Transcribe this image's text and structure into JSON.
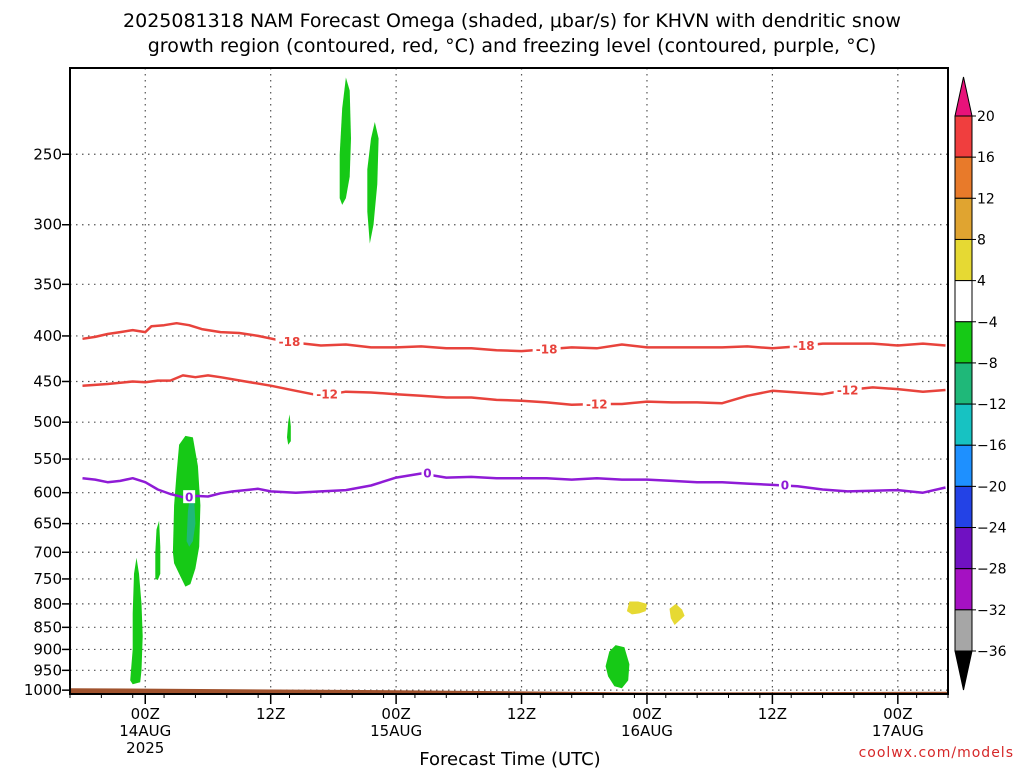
{
  "chart_data": {
    "type": "contour",
    "title_lines": [
      "2025081318 NAM Forecast Omega (shaded, μbar/s) for KHVN with dendritic snow",
      "growth region (contoured, red, °C) and freezing level (contoured, purple, °C)"
    ],
    "xlabel": "Forecast Time (UTC)",
    "credit": "coolwx.com/models",
    "x_range_hours": [
      -6,
      64
    ],
    "x_ticks": [
      {
        "hour": 0,
        "lines": [
          "00Z",
          "14AUG",
          "2025"
        ]
      },
      {
        "hour": 10,
        "lines": [
          "12Z"
        ]
      },
      {
        "hour": 20,
        "lines": [
          "00Z",
          "15AUG"
        ]
      },
      {
        "hour": 30,
        "lines": [
          "12Z"
        ]
      },
      {
        "hour": 40,
        "lines": [
          "00Z",
          "16AUG"
        ]
      },
      {
        "hour": 50,
        "lines": [
          "12Z"
        ]
      },
      {
        "hour": 60,
        "lines": [
          "00Z",
          "17AUG"
        ]
      }
    ],
    "y_ticks": [
      250,
      300,
      350,
      400,
      450,
      500,
      550,
      600,
      650,
      700,
      750,
      800,
      850,
      900,
      950,
      1000
    ],
    "y_range_hpa": [
      200,
      1010
    ],
    "y_scale": "log",
    "grid": true,
    "colorbar": {
      "labels": [
        "20",
        "16",
        "12",
        "8",
        "4",
        "−4",
        "−8",
        "−12",
        "−16",
        "−20",
        "−24",
        "−28",
        "−32",
        "−36"
      ],
      "colors": [
        "#f03e3e",
        "#e87a2a",
        "#e0a430",
        "#e6d933",
        "#ffffff",
        "#16c916",
        "#1fb879",
        "#17c2c2",
        "#1e90ff",
        "#2342e6",
        "#7011c2",
        "#a511c2",
        "#a6a6a6"
      ],
      "top_color": "#e8127a",
      "bottom_color": "#000000"
    },
    "isotherm_minus18": [
      [
        -5.0,
        403
      ],
      [
        -4.0,
        401
      ],
      [
        -3.0,
        398
      ],
      [
        -2.0,
        396
      ],
      [
        -1.0,
        394
      ],
      [
        0.0,
        396
      ],
      [
        0.5,
        390
      ],
      [
        1.5,
        389
      ],
      [
        2.5,
        387
      ],
      [
        3.5,
        389
      ],
      [
        4.5,
        393
      ],
      [
        6.0,
        396
      ],
      [
        7.5,
        397
      ],
      [
        9.0,
        400
      ],
      [
        10.5,
        404
      ],
      [
        12.0,
        407
      ],
      [
        14.0,
        410
      ],
      [
        16.0,
        409
      ],
      [
        18.0,
        412
      ],
      [
        20.0,
        412
      ],
      [
        22.0,
        411
      ],
      [
        24.0,
        413
      ],
      [
        26.0,
        413
      ],
      [
        28.0,
        415
      ],
      [
        30.0,
        416
      ],
      [
        32.0,
        414
      ],
      [
        34.0,
        412
      ],
      [
        36.0,
        413
      ],
      [
        38.0,
        409
      ],
      [
        40.0,
        412
      ],
      [
        42.0,
        412
      ],
      [
        44.0,
        412
      ],
      [
        46.0,
        412
      ],
      [
        48.0,
        411
      ],
      [
        50.0,
        413
      ],
      [
        52.0,
        411
      ],
      [
        54.0,
        408
      ],
      [
        56.0,
        408
      ],
      [
        58.0,
        408
      ],
      [
        60.0,
        410
      ],
      [
        62.0,
        408
      ],
      [
        63.8,
        410
      ]
    ],
    "isotherm_minus12": [
      [
        -5.0,
        455
      ],
      [
        -3.0,
        453
      ],
      [
        -1.0,
        450
      ],
      [
        0.0,
        451
      ],
      [
        1.0,
        449
      ],
      [
        2.0,
        449
      ],
      [
        3.0,
        443
      ],
      [
        4.0,
        445
      ],
      [
        5.0,
        443
      ],
      [
        6.0,
        445
      ],
      [
        8.0,
        450
      ],
      [
        10.0,
        455
      ],
      [
        12.0,
        461
      ],
      [
        14.0,
        467
      ],
      [
        16.0,
        462
      ],
      [
        18.0,
        463
      ],
      [
        20.0,
        465
      ],
      [
        22.0,
        467
      ],
      [
        24.0,
        469
      ],
      [
        26.0,
        469
      ],
      [
        28.0,
        472
      ],
      [
        30.0,
        473
      ],
      [
        32.0,
        475
      ],
      [
        34.0,
        478
      ],
      [
        36.0,
        477
      ],
      [
        38.0,
        477
      ],
      [
        40.0,
        474
      ],
      [
        42.0,
        475
      ],
      [
        44.0,
        475
      ],
      [
        46.0,
        476
      ],
      [
        48.0,
        467
      ],
      [
        50.0,
        461
      ],
      [
        52.0,
        463
      ],
      [
        54.0,
        465
      ],
      [
        56.0,
        460
      ],
      [
        58.0,
        457
      ],
      [
        60.0,
        459
      ],
      [
        62.0,
        462
      ],
      [
        63.8,
        460
      ]
    ],
    "isotherm_0": [
      [
        -5.0,
        578
      ],
      [
        -4.0,
        580
      ],
      [
        -3.0,
        584
      ],
      [
        -2.0,
        582
      ],
      [
        -1.0,
        578
      ],
      [
        0.0,
        584
      ],
      [
        1.0,
        595
      ],
      [
        2.0,
        602
      ],
      [
        3.0,
        607
      ],
      [
        4.0,
        605
      ],
      [
        5.0,
        606
      ],
      [
        6.0,
        601
      ],
      [
        7.0,
        598
      ],
      [
        8.0,
        596
      ],
      [
        9.0,
        594
      ],
      [
        10.0,
        598
      ],
      [
        12.0,
        600
      ],
      [
        14.0,
        598
      ],
      [
        16.0,
        596
      ],
      [
        18.0,
        589
      ],
      [
        20.0,
        577
      ],
      [
        22.0,
        571
      ],
      [
        24.0,
        577
      ],
      [
        26.0,
        576
      ],
      [
        28.0,
        578
      ],
      [
        30.0,
        578
      ],
      [
        32.0,
        578
      ],
      [
        34.0,
        580
      ],
      [
        36.0,
        578
      ],
      [
        38.0,
        580
      ],
      [
        40.0,
        580
      ],
      [
        42.0,
        582
      ],
      [
        44.0,
        584
      ],
      [
        46.0,
        584
      ],
      [
        48.0,
        586
      ],
      [
        50.0,
        588
      ],
      [
        52.0,
        590
      ],
      [
        54.0,
        595
      ],
      [
        56.0,
        598
      ],
      [
        58.0,
        597
      ],
      [
        60.0,
        596
      ],
      [
        62.0,
        600
      ],
      [
        63.8,
        592
      ]
    ],
    "contour_labels": [
      {
        "text": "-18",
        "hour": 11.5,
        "p": 406,
        "color": "#e8433c"
      },
      {
        "text": "-18",
        "hour": 32.0,
        "p": 414,
        "color": "#e8433c"
      },
      {
        "text": "-18",
        "hour": 52.5,
        "p": 410,
        "color": "#e8433c"
      },
      {
        "text": "-12",
        "hour": 14.5,
        "p": 465,
        "color": "#e8433c"
      },
      {
        "text": "-12",
        "hour": 36.0,
        "p": 477,
        "color": "#e8433c"
      },
      {
        "text": "-12",
        "hour": 56.0,
        "p": 460,
        "color": "#e8433c"
      },
      {
        "text": "0",
        "hour": 3.5,
        "p": 607,
        "color": "#8f1bd6"
      },
      {
        "text": "0",
        "hour": 22.5,
        "p": 570,
        "color": "#8f1bd6"
      },
      {
        "text": "0",
        "hour": 51.0,
        "p": 588,
        "color": "#8f1bd6"
      }
    ],
    "omega_regions": [
      {
        "level": "-4 to -8",
        "color": "#16c916",
        "outline": [
          [
            -1.2,
            975
          ],
          [
            -1.0,
            900
          ],
          [
            -1.0,
            820
          ],
          [
            -0.9,
            740
          ],
          [
            -0.7,
            710
          ],
          [
            -0.5,
            740
          ],
          [
            -0.3,
            800
          ],
          [
            -0.2,
            870
          ],
          [
            -0.3,
            950
          ],
          [
            -0.4,
            980
          ],
          [
            -1.0,
            985
          ]
        ]
      },
      {
        "level": "-4 to -8",
        "color": "#16c916",
        "outline": [
          [
            0.8,
            750
          ],
          [
            0.8,
            700
          ],
          [
            0.9,
            660
          ],
          [
            1.1,
            645
          ],
          [
            1.2,
            690
          ],
          [
            1.2,
            740
          ],
          [
            1.0,
            752
          ]
        ]
      },
      {
        "level": "-4 to -8",
        "color": "#16c916",
        "outline": [
          [
            2.2,
            700
          ],
          [
            2.3,
            620
          ],
          [
            2.5,
            570
          ],
          [
            2.7,
            530
          ],
          [
            3.2,
            518
          ],
          [
            3.8,
            520
          ],
          [
            4.2,
            560
          ],
          [
            4.4,
            620
          ],
          [
            4.3,
            690
          ],
          [
            4.0,
            730
          ],
          [
            3.6,
            760
          ],
          [
            3.2,
            765
          ],
          [
            2.7,
            740
          ],
          [
            2.3,
            720
          ]
        ]
      },
      {
        "level": "-8 to -12",
        "color": "#1fb879",
        "outline": [
          [
            3.3,
            680
          ],
          [
            3.4,
            630
          ],
          [
            3.6,
            600
          ],
          [
            3.9,
            610
          ],
          [
            4.0,
            650
          ],
          [
            3.8,
            680
          ],
          [
            3.5,
            690
          ]
        ]
      },
      {
        "level": "-4 to -8",
        "color": "#16c916",
        "outline": [
          [
            11.3,
            520
          ],
          [
            11.4,
            500
          ],
          [
            11.5,
            490
          ],
          [
            11.6,
            505
          ],
          [
            11.6,
            525
          ],
          [
            11.4,
            530
          ]
        ]
      },
      {
        "level": "-4 to -8",
        "color": "#16c916",
        "outline": [
          [
            15.5,
            280
          ],
          [
            15.5,
            250
          ],
          [
            15.7,
            222
          ],
          [
            16.0,
            205
          ],
          [
            16.3,
            212
          ],
          [
            16.4,
            240
          ],
          [
            16.3,
            265
          ],
          [
            16.0,
            280
          ],
          [
            15.7,
            285
          ]
        ]
      },
      {
        "level": "-4 to -8",
        "color": "#16c916",
        "outline": [
          [
            17.7,
            290
          ],
          [
            17.7,
            260
          ],
          [
            18.0,
            240
          ],
          [
            18.3,
            230
          ],
          [
            18.6,
            240
          ],
          [
            18.5,
            270
          ],
          [
            18.2,
            300
          ],
          [
            17.9,
            315
          ]
        ]
      },
      {
        "level": "-4 to -8",
        "color": "#16c916",
        "outline": [
          [
            36.7,
            940
          ],
          [
            37.0,
            905
          ],
          [
            37.5,
            890
          ],
          [
            38.2,
            895
          ],
          [
            38.6,
            935
          ],
          [
            38.5,
            975
          ],
          [
            38.0,
            995
          ],
          [
            37.4,
            990
          ],
          [
            36.9,
            965
          ]
        ]
      },
      {
        "level": "4 to 8",
        "color": "#e6d933",
        "outline": [
          [
            38.4,
            815
          ],
          [
            38.6,
            795
          ],
          [
            39.3,
            795
          ],
          [
            40.0,
            800
          ],
          [
            39.9,
            815
          ],
          [
            39.4,
            820
          ],
          [
            38.8,
            822
          ]
        ]
      },
      {
        "level": "4 to 8",
        "color": "#e6d933",
        "outline": [
          [
            41.8,
            810
          ],
          [
            42.3,
            800
          ],
          [
            42.8,
            812
          ],
          [
            43.0,
            825
          ],
          [
            42.6,
            835
          ],
          [
            42.2,
            845
          ],
          [
            41.9,
            830
          ]
        ]
      }
    ],
    "ground_color": "#a0522d",
    "ground_top_hpa": [
      [
        -6,
        995
      ],
      [
        20,
        1000
      ],
      [
        40,
        1006
      ],
      [
        64,
        1004
      ]
    ]
  }
}
